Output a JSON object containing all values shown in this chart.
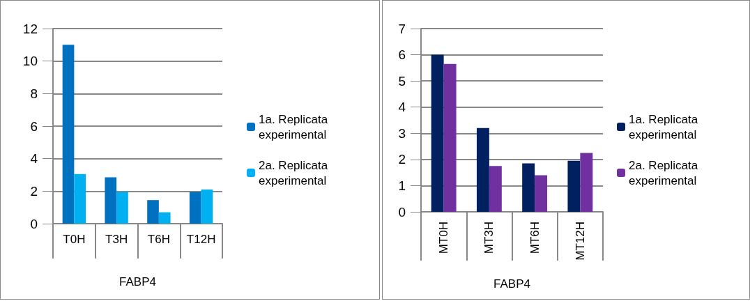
{
  "chart_data": [
    {
      "type": "bar",
      "xlabel": "FABP4",
      "categories": [
        "T0H",
        "T3H",
        "T6H",
        "T12H"
      ],
      "series": [
        {
          "name": "1a. Replicata experimental",
          "color": "#0070c0",
          "values": [
            11.0,
            2.85,
            1.45,
            1.95
          ]
        },
        {
          "name": "2a. Replicata experimental",
          "color": "#00b0f0",
          "values": [
            3.05,
            1.95,
            0.7,
            2.1
          ]
        }
      ],
      "ylim": [
        0,
        12
      ],
      "yticks": [
        0,
        2,
        4,
        6,
        8,
        10,
        12
      ],
      "grid": "y",
      "legend": "right"
    },
    {
      "type": "bar",
      "xlabel": "FABP4",
      "categories": [
        "MT0H",
        "MT3H",
        "MT6H",
        "MT12H"
      ],
      "series": [
        {
          "name": "1a. Replicata experimental",
          "color": "#002060",
          "values": [
            6.0,
            3.2,
            1.85,
            1.95
          ]
        },
        {
          "name": "2a. Replicata experimental",
          "color": "#7030a0",
          "values": [
            5.65,
            1.75,
            1.4,
            2.25
          ]
        }
      ],
      "ylim": [
        0,
        7
      ],
      "yticks": [
        0,
        1,
        2,
        3,
        4,
        5,
        6,
        7
      ],
      "grid": "y",
      "legend": "right"
    }
  ]
}
